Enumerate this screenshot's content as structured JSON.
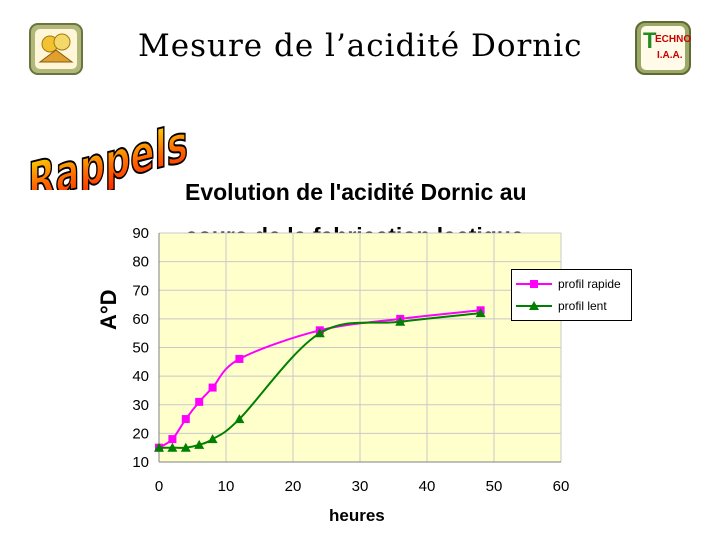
{
  "slide": {
    "title": "Mesure de l’acidité Dornic",
    "banner": "Rappels",
    "logo_right_text_top": "ECHNO",
    "logo_right_letter": "T",
    "logo_right_text_bottom": "I.A.A."
  },
  "colors": {
    "plot_bg": "#ffffcc",
    "rapide": "#ff00ff",
    "lent": "#008000",
    "banner_fill": "#ff3300",
    "banner_stroke": "#000000"
  },
  "chart_data": {
    "type": "line",
    "title_line1": "Evolution de l'acidité Dornic au",
    "title_line2": "cours de la fabrication lactique",
    "xlabel": "heures",
    "ylabel": "A°D",
    "xlim": [
      0,
      60
    ],
    "ylim": [
      10,
      90
    ],
    "xticks": [
      0,
      10,
      20,
      30,
      40,
      50,
      60
    ],
    "yticks": [
      10,
      20,
      30,
      40,
      50,
      60,
      70,
      80,
      90
    ],
    "grid": true,
    "legend_position": "right",
    "series": [
      {
        "name": "profil rapide",
        "marker": "square",
        "x": [
          0,
          2,
          4,
          6,
          8,
          12,
          24,
          36,
          48
        ],
        "y": [
          15,
          18,
          25,
          31,
          36,
          46,
          56,
          60,
          63
        ]
      },
      {
        "name": "profil lent",
        "marker": "triangle",
        "x": [
          0,
          2,
          4,
          6,
          8,
          12,
          24,
          36,
          48
        ],
        "y": [
          15,
          15,
          15,
          16,
          18,
          25,
          55,
          59,
          62
        ]
      }
    ]
  }
}
